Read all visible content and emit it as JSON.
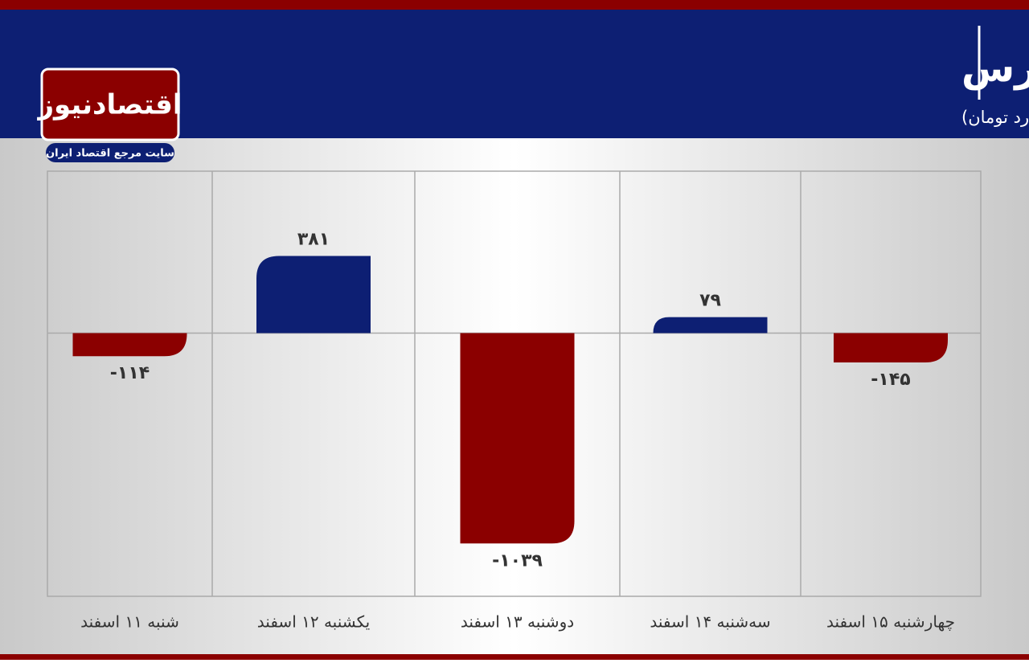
{
  "header": {
    "logo": "اقتصادنیوز",
    "logo_tagline": "سایت مرجع اقتصاد ایران"
  },
  "chart_data": {
    "type": "bar",
    "title": "روند ورود پول حقیقی در بورس",
    "subtitle": "(واحد:میلیارد تومان)",
    "categories": [
      "شنبه ۱۱ اسفند",
      "یکشنبه ۱۲ اسفند",
      "دوشنبه ۱۳ اسفند",
      "سه‌شنبه ۱۴ اسفند",
      "چهارشنبه ۱۵ اسفند"
    ],
    "values": [
      -114,
      381,
      -1039,
      79,
      -145
    ],
    "value_labels": [
      "-۱۱۴",
      "۳۸۱",
      "-۱۰۳۹",
      "۷۹",
      "-۱۴۵"
    ],
    "colors": [
      "#8b0000",
      "#0d1f73",
      "#8b0000",
      "#0d1f73",
      "#8b0000"
    ],
    "ylim": [
      -1300,
      800
    ]
  }
}
